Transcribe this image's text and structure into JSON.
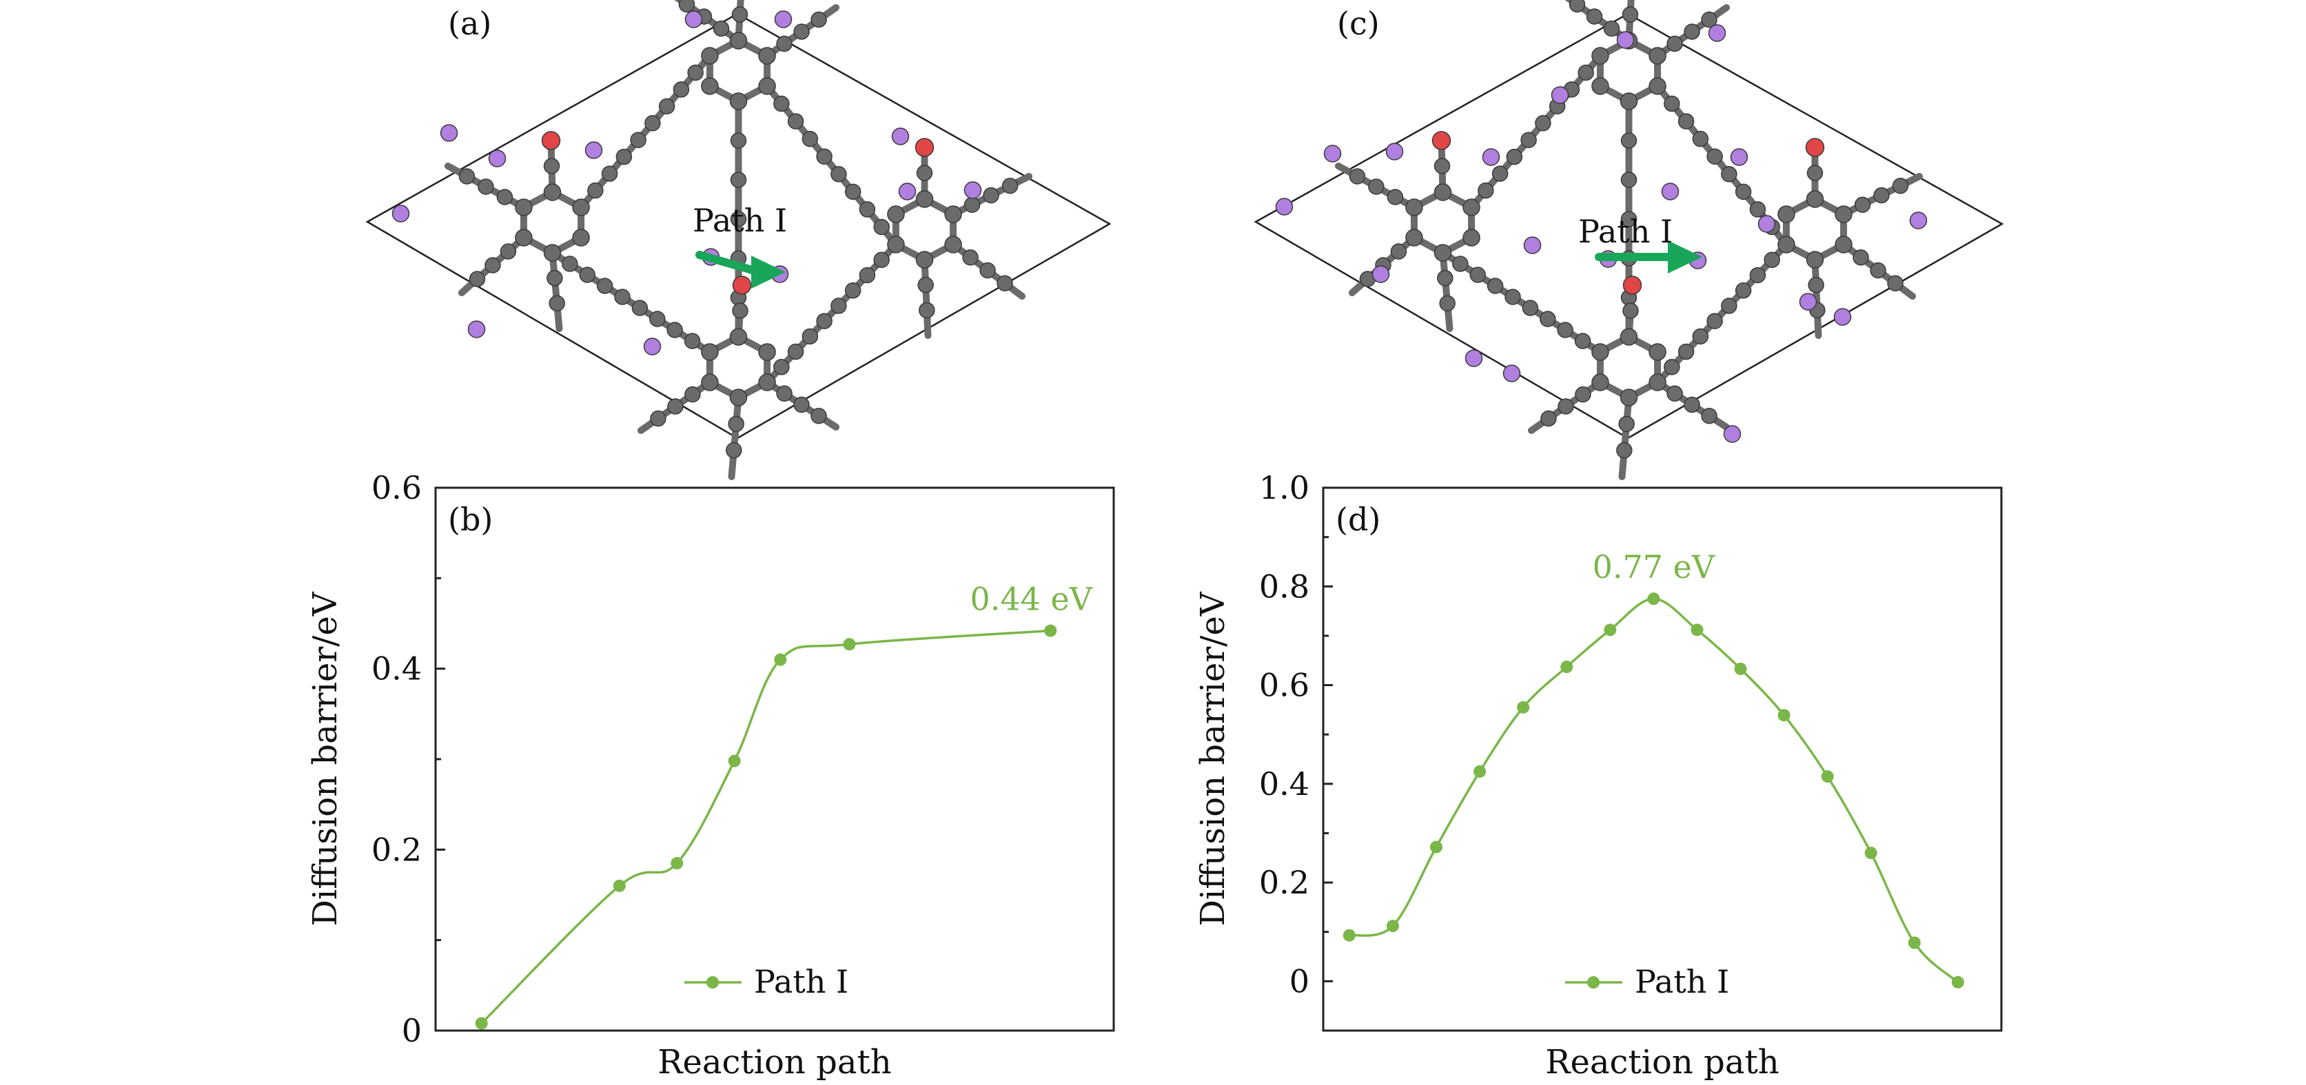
{
  "colors": {
    "curve": "#7ab648",
    "carbon": "#6b6b6b",
    "oxygen": "#e04646",
    "lithium": "#b07fe0",
    "arrow": "#1aa65a",
    "frame": "#222222"
  },
  "structures": [
    {
      "panel_label": "(a)",
      "path_label": "Path I"
    },
    {
      "panel_label": "(c)",
      "path_label": "Path I"
    }
  ],
  "chart_data": [
    {
      "type": "line",
      "panel_label": "(b)",
      "title": "",
      "xlabel": "Reaction path",
      "ylabel": "Diffusion barrier/eV",
      "xlim": [
        -0.8,
        11.0
      ],
      "ylim": [
        0,
        0.6
      ],
      "yticks": [
        0,
        0.2,
        0.4,
        0.6
      ],
      "ytick_labels": [
        "0",
        "0.2",
        "0.4",
        "0.6"
      ],
      "series": [
        {
          "name": "Path I",
          "x": [
            0,
            2.4,
            3.4,
            4.4,
            5.2,
            6.4,
            9.9
          ],
          "values": [
            0.008,
            0.16,
            0.185,
            0.298,
            0.41,
            0.427,
            0.442
          ]
        }
      ],
      "annotations": [
        {
          "text": "0.44 eV",
          "x": 9.9,
          "y": 0.442
        }
      ],
      "legend": "bottom-center",
      "grid": false
    },
    {
      "type": "line",
      "panel_label": "(d)",
      "title": "",
      "xlabel": "Reaction path",
      "ylabel": "Diffusion barrier/eV",
      "xlim": [
        -0.6,
        15.0
      ],
      "ylim": [
        -0.1,
        1.0
      ],
      "yticks": [
        0,
        0.2,
        0.4,
        0.6,
        0.8,
        1.0
      ],
      "ytick_labels": [
        "0",
        "0.2",
        "0.4",
        "0.6",
        "0.8",
        "1.0"
      ],
      "series": [
        {
          "name": "Path I",
          "x": [
            0,
            1,
            2,
            3,
            4,
            5,
            6,
            7,
            8,
            9,
            10,
            11,
            12,
            13,
            14
          ],
          "values": [
            0.093,
            0.112,
            0.272,
            0.425,
            0.555,
            0.637,
            0.712,
            0.775,
            0.712,
            0.633,
            0.539,
            0.415,
            0.26,
            0.078,
            -0.002
          ]
        }
      ],
      "annotations": [
        {
          "text": "0.77 eV",
          "x": 7,
          "y": 0.775
        }
      ],
      "legend": "bottom-center",
      "grid": false
    }
  ]
}
